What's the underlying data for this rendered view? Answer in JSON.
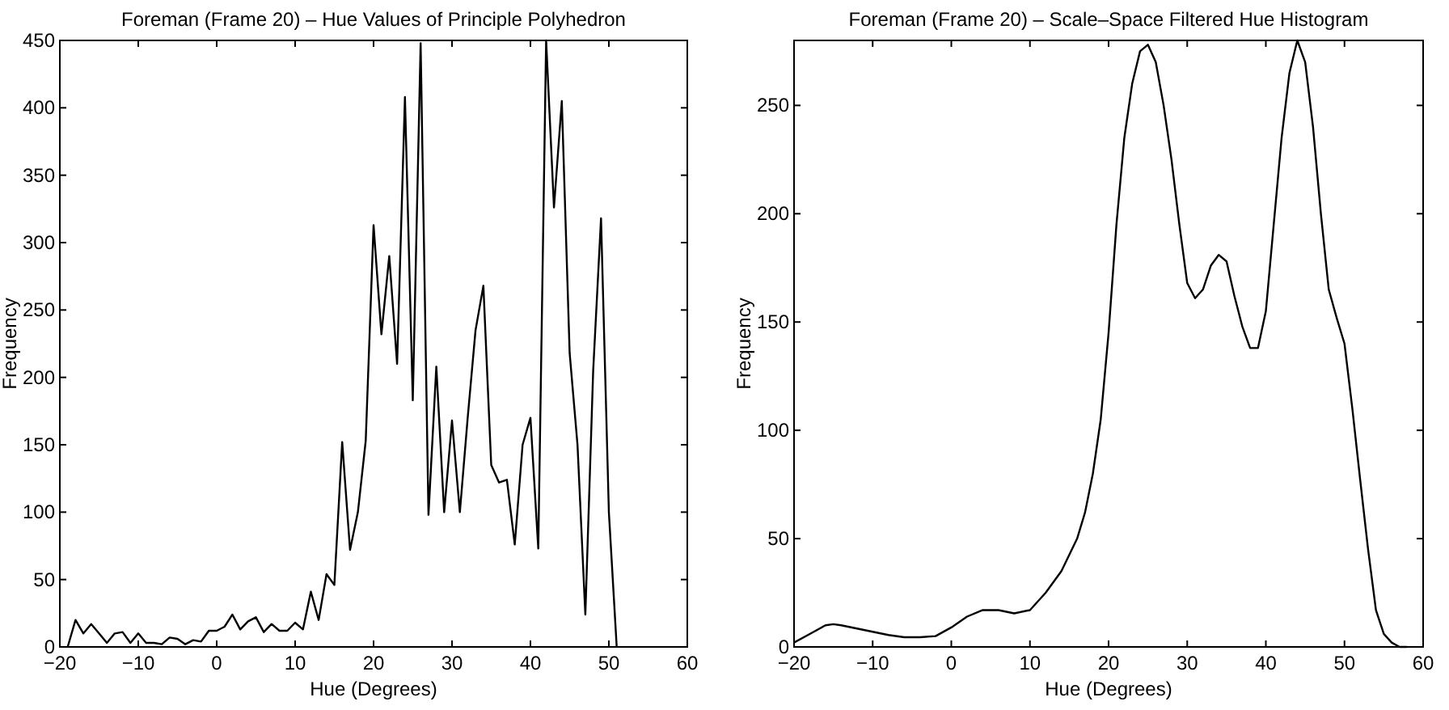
{
  "chart_data": [
    {
      "type": "line",
      "title": "Foreman (Frame 20) – Hue Values of Principle Polyhedron",
      "xlabel": "Hue (Degrees)",
      "ylabel": "Frequency",
      "xlim": [
        -20,
        60
      ],
      "xticks": [
        -20,
        -10,
        0,
        10,
        20,
        30,
        40,
        50,
        60
      ],
      "ylim": [
        0,
        450
      ],
      "yticks": [
        0,
        50,
        100,
        150,
        200,
        250,
        300,
        350,
        400,
        450
      ],
      "grid": false,
      "series": [
        {
          "color": "#000000",
          "x": [
            -19,
            -18,
            -17,
            -16,
            -15,
            -14,
            -13,
            -12,
            -11,
            -10,
            -9,
            -8,
            -7,
            -6,
            -5,
            -4,
            -3,
            -2,
            -1,
            0,
            1,
            2,
            3,
            4,
            5,
            6,
            7,
            8,
            9,
            10,
            11,
            12,
            13,
            14,
            15,
            16,
            17,
            18,
            19,
            20,
            21,
            22,
            23,
            24,
            25,
            26,
            27,
            28,
            29,
            30,
            31,
            32,
            33,
            34,
            35,
            36,
            37,
            38,
            39,
            40,
            41,
            42,
            43,
            44,
            45,
            46,
            47,
            48,
            49,
            50,
            51
          ],
          "values": [
            0,
            20,
            10,
            17,
            10,
            3,
            10,
            11,
            3,
            10,
            3,
            3,
            2,
            7,
            6,
            2,
            5,
            4,
            12,
            12,
            15,
            24,
            13,
            19,
            22,
            11,
            17,
            12,
            12,
            18,
            13,
            41,
            20,
            54,
            46,
            152,
            72,
            100,
            153,
            313,
            232,
            290,
            210,
            408,
            183,
            448,
            98,
            208,
            100,
            168,
            100,
            170,
            235,
            268,
            135,
            122,
            124,
            76,
            150,
            170,
            73,
            450,
            326,
            405,
            218,
            150,
            24,
            205,
            318,
            100,
            0
          ]
        }
      ]
    },
    {
      "type": "line",
      "title": "Foreman (Frame 20) – Scale–Space Filtered Hue Histogram",
      "xlabel": "Hue (Degrees)",
      "ylabel": "Frequency",
      "xlim": [
        -20,
        60
      ],
      "xticks": [
        -20,
        -10,
        0,
        10,
        20,
        30,
        40,
        50,
        60
      ],
      "ylim": [
        0,
        280
      ],
      "yticks": [
        0,
        50,
        100,
        150,
        200,
        250
      ],
      "grid": false,
      "series": [
        {
          "color": "#000000",
          "x": [
            -20,
            -18,
            -16,
            -15,
            -14,
            -12,
            -10,
            -8,
            -6,
            -4,
            -2,
            0,
            2,
            4,
            6,
            8,
            10,
            12,
            14,
            16,
            17,
            18,
            19,
            20,
            21,
            22,
            23,
            24,
            25,
            26,
            27,
            28,
            29,
            30,
            31,
            32,
            33,
            34,
            35,
            36,
            37,
            38,
            39,
            40,
            41,
            42,
            43,
            44,
            45,
            46,
            47,
            48,
            49,
            50,
            51,
            52,
            53,
            54,
            55,
            56,
            57,
            58
          ],
          "values": [
            2,
            6,
            10,
            10.5,
            10,
            8.5,
            7,
            5.5,
            4.5,
            4.5,
            5,
            9,
            14,
            17,
            17,
            15.5,
            17,
            25,
            35,
            50,
            62,
            80,
            105,
            145,
            195,
            235,
            260,
            275,
            278,
            270,
            250,
            225,
            195,
            168,
            161,
            165,
            176,
            181,
            178,
            162,
            148,
            138,
            138,
            155,
            195,
            235,
            265,
            280,
            270,
            240,
            200,
            165,
            152,
            140,
            110,
            77,
            45,
            17,
            6,
            2,
            0,
            0
          ]
        }
      ]
    }
  ]
}
